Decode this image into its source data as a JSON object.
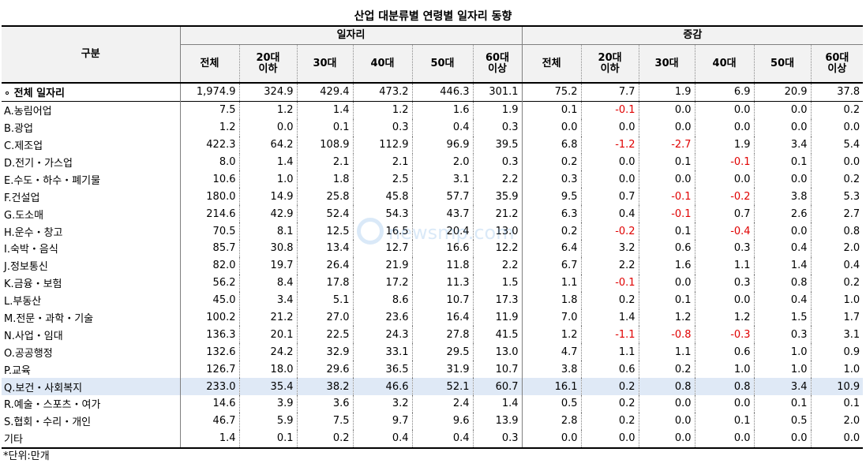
{
  "title": "산업 대분류별 연령별 일자리 동향",
  "header": {
    "gubun": "구분",
    "group_jobs": "일자리",
    "group_change": "증감",
    "columns": [
      [
        "전체",
        ""
      ],
      [
        "20대",
        "이하"
      ],
      [
        "30대",
        ""
      ],
      [
        "40대",
        ""
      ],
      [
        "50대",
        ""
      ],
      [
        "60대",
        "이상"
      ]
    ]
  },
  "rows": [
    {
      "label": "∘ 전체 일자리",
      "jobs": [
        "1,974.9",
        "324.9",
        "429.4",
        "473.2",
        "446.3",
        "301.1"
      ],
      "change": [
        "75.2",
        "7.7",
        "1.9",
        "6.9",
        "20.9",
        "37.8"
      ]
    },
    {
      "label": "A.농림어업",
      "jobs": [
        "7.5",
        "1.2",
        "1.4",
        "1.2",
        "1.6",
        "1.9"
      ],
      "change": [
        "0.1",
        "-0.1",
        "0.0",
        "0.0",
        "0.0",
        "0.2"
      ]
    },
    {
      "label": "B.광업",
      "jobs": [
        "1.2",
        "0.0",
        "0.1",
        "0.3",
        "0.4",
        "0.3"
      ],
      "change": [
        "0.0",
        "0.0",
        "0.0",
        "0.0",
        "0.0",
        "0.0"
      ]
    },
    {
      "label": "C.제조업",
      "jobs": [
        "422.3",
        "64.2",
        "108.9",
        "112.9",
        "96.9",
        "39.5"
      ],
      "change": [
        "6.8",
        "-1.2",
        "-2.7",
        "1.9",
        "3.4",
        "5.4"
      ]
    },
    {
      "label": "D.전기・가스업",
      "jobs": [
        "8.0",
        "1.4",
        "2.1",
        "2.1",
        "2.0",
        "0.3"
      ],
      "change": [
        "0.2",
        "0.0",
        "0.1",
        "-0.1",
        "0.1",
        "0.0"
      ]
    },
    {
      "label": "E.수도・하수・폐기물",
      "jobs": [
        "10.6",
        "1.0",
        "1.8",
        "2.5",
        "3.1",
        "2.2"
      ],
      "change": [
        "0.3",
        "0.0",
        "0.0",
        "0.0",
        "0.0",
        "0.2"
      ]
    },
    {
      "label": "F.건설업",
      "jobs": [
        "180.0",
        "14.9",
        "25.8",
        "45.8",
        "57.7",
        "35.9"
      ],
      "change": [
        "9.5",
        "0.7",
        "-0.1",
        "-0.2",
        "3.8",
        "5.3"
      ]
    },
    {
      "label": "G.도소매",
      "jobs": [
        "214.6",
        "42.9",
        "52.4",
        "54.3",
        "43.7",
        "21.2"
      ],
      "change": [
        "6.3",
        "0.4",
        "-0.1",
        "0.7",
        "2.6",
        "2.7"
      ]
    },
    {
      "label": "H.운수・창고",
      "jobs": [
        "70.5",
        "8.1",
        "12.5",
        "16.5",
        "20.4",
        "13.0"
      ],
      "change": [
        "0.2",
        "-0.2",
        "0.1",
        "-0.4",
        "0.0",
        "0.8"
      ]
    },
    {
      "label": "I.숙박・음식",
      "jobs": [
        "85.7",
        "30.8",
        "13.4",
        "12.7",
        "16.6",
        "12.2"
      ],
      "change": [
        "6.4",
        "3.2",
        "0.6",
        "0.3",
        "0.4",
        "2.0"
      ]
    },
    {
      "label": "J.정보통신",
      "jobs": [
        "82.0",
        "19.7",
        "26.4",
        "21.9",
        "11.8",
        "2.2"
      ],
      "change": [
        "6.7",
        "2.2",
        "1.6",
        "1.1",
        "1.4",
        "0.4"
      ]
    },
    {
      "label": "K.금융・보험",
      "jobs": [
        "56.2",
        "8.4",
        "17.8",
        "17.2",
        "11.3",
        "1.5"
      ],
      "change": [
        "1.1",
        "-0.1",
        "0.0",
        "0.3",
        "0.8",
        "0.2"
      ]
    },
    {
      "label": "L.부동산",
      "jobs": [
        "45.0",
        "3.4",
        "5.1",
        "8.6",
        "10.7",
        "17.3"
      ],
      "change": [
        "1.8",
        "0.2",
        "0.1",
        "0.0",
        "0.4",
        "1.0"
      ]
    },
    {
      "label": "M.전문・과학・기술",
      "jobs": [
        "100.2",
        "21.2",
        "27.0",
        "23.6",
        "16.4",
        "11.9"
      ],
      "change": [
        "7.0",
        "1.4",
        "1.2",
        "1.2",
        "1.5",
        "1.7"
      ]
    },
    {
      "label": "N.사업・임대",
      "jobs": [
        "136.3",
        "20.1",
        "22.5",
        "24.3",
        "27.8",
        "41.5"
      ],
      "change": [
        "1.2",
        "-1.1",
        "-0.8",
        "-0.3",
        "0.3",
        "3.1"
      ]
    },
    {
      "label": "O.공공행정",
      "jobs": [
        "132.6",
        "24.2",
        "32.9",
        "33.1",
        "29.5",
        "13.0"
      ],
      "change": [
        "4.7",
        "1.1",
        "1.1",
        "0.6",
        "1.0",
        "0.9"
      ]
    },
    {
      "label": "P.교육",
      "jobs": [
        "126.7",
        "18.0",
        "29.6",
        "36.5",
        "31.9",
        "10.7"
      ],
      "change": [
        "3.8",
        "0.6",
        "0.2",
        "1.0",
        "1.0",
        "1.0"
      ]
    },
    {
      "label": "Q.보건・사회복지",
      "jobs": [
        "233.0",
        "35.4",
        "38.2",
        "46.6",
        "52.1",
        "60.7"
      ],
      "change": [
        "16.1",
        "0.2",
        "0.8",
        "0.8",
        "3.4",
        "10.9"
      ]
    },
    {
      "label": "R.예술・스포츠・여가",
      "jobs": [
        "14.6",
        "3.9",
        "3.6",
        "3.2",
        "2.4",
        "1.4"
      ],
      "change": [
        "0.5",
        "0.2",
        "0.0",
        "0.0",
        "0.1",
        "0.1"
      ]
    },
    {
      "label": "S.협회・수리・개인",
      "jobs": [
        "46.7",
        "5.9",
        "7.5",
        "9.7",
        "9.6",
        "13.9"
      ],
      "change": [
        "2.8",
        "0.2",
        "0.0",
        "0.1",
        "0.5",
        "2.0"
      ]
    },
    {
      "label": "기타",
      "jobs": [
        "1.4",
        "0.1",
        "0.2",
        "0.4",
        "0.4",
        "0.3"
      ],
      "change": [
        "0.0",
        "0.0",
        "0.0",
        "0.0",
        "0.0",
        "0.0"
      ]
    }
  ],
  "highlight_row_label": "Q.보건・사회복지",
  "highlight_color": "#dfe9f6",
  "negative_color": "#e00000",
  "footnote": "*단위:만개",
  "watermark": "newsmp.com"
}
